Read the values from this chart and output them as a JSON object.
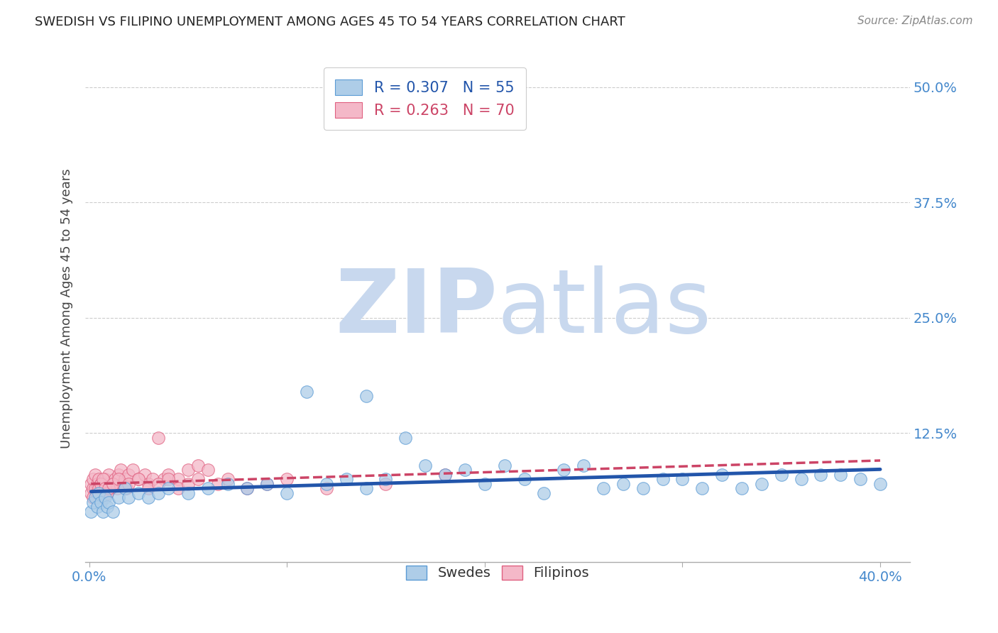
{
  "title": "SWEDISH VS FILIPINO UNEMPLOYMENT AMONG AGES 45 TO 54 YEARS CORRELATION CHART",
  "source": "Source: ZipAtlas.com",
  "ylabel": "Unemployment Among Ages 45 to 54 years",
  "xlim": [
    -0.002,
    0.415
  ],
  "ylim": [
    -0.015,
    0.535
  ],
  "xticks": [
    0.0,
    0.1,
    0.2,
    0.3,
    0.4
  ],
  "yticks": [
    0.125,
    0.25,
    0.375,
    0.5
  ],
  "xtick_labels": [
    "0.0%",
    "",
    "",
    "",
    "40.0%"
  ],
  "ytick_labels": [
    "12.5%",
    "25.0%",
    "37.5%",
    "50.0%"
  ],
  "swedes_R": 0.307,
  "swedes_N": 55,
  "filipinos_R": 0.263,
  "filipinos_N": 70,
  "blue_color": "#aecde8",
  "blue_edge_color": "#5b9bd5",
  "blue_line_color": "#2255aa",
  "pink_color": "#f4b8c8",
  "pink_edge_color": "#e06080",
  "pink_line_color": "#cc4466",
  "watermark_zip_color": "#c8d8ee",
  "watermark_atlas_color": "#c8d8ee",
  "background_color": "#ffffff",
  "grid_color": "#cccccc",
  "swedes_x": [
    0.001,
    0.002,
    0.003,
    0.004,
    0.005,
    0.006,
    0.007,
    0.008,
    0.009,
    0.01,
    0.012,
    0.015,
    0.018,
    0.02,
    0.025,
    0.03,
    0.035,
    0.04,
    0.05,
    0.06,
    0.07,
    0.08,
    0.09,
    0.1,
    0.12,
    0.13,
    0.14,
    0.15,
    0.17,
    0.18,
    0.19,
    0.2,
    0.22,
    0.24,
    0.25,
    0.26,
    0.27,
    0.28,
    0.29,
    0.3,
    0.31,
    0.32,
    0.33,
    0.34,
    0.35,
    0.36,
    0.37,
    0.38,
    0.39,
    0.4,
    0.16,
    0.21,
    0.23,
    0.11,
    0.14
  ],
  "swedes_y": [
    0.04,
    0.05,
    0.055,
    0.045,
    0.06,
    0.05,
    0.04,
    0.055,
    0.045,
    0.05,
    0.04,
    0.055,
    0.065,
    0.055,
    0.06,
    0.055,
    0.06,
    0.065,
    0.06,
    0.065,
    0.07,
    0.065,
    0.07,
    0.06,
    0.07,
    0.075,
    0.165,
    0.075,
    0.09,
    0.08,
    0.085,
    0.07,
    0.075,
    0.085,
    0.09,
    0.065,
    0.07,
    0.065,
    0.075,
    0.075,
    0.065,
    0.08,
    0.065,
    0.07,
    0.08,
    0.075,
    0.08,
    0.08,
    0.075,
    0.07,
    0.12,
    0.09,
    0.06,
    0.17,
    0.065
  ],
  "filipinos_x": [
    0.001,
    0.001,
    0.002,
    0.002,
    0.003,
    0.003,
    0.004,
    0.004,
    0.005,
    0.005,
    0.006,
    0.006,
    0.007,
    0.007,
    0.008,
    0.008,
    0.009,
    0.009,
    0.01,
    0.01,
    0.011,
    0.012,
    0.013,
    0.014,
    0.015,
    0.016,
    0.017,
    0.018,
    0.019,
    0.02,
    0.022,
    0.025,
    0.028,
    0.03,
    0.032,
    0.035,
    0.038,
    0.04,
    0.045,
    0.05,
    0.055,
    0.06,
    0.065,
    0.07,
    0.08,
    0.09,
    0.1,
    0.12,
    0.15,
    0.18,
    0.002,
    0.003,
    0.004,
    0.005,
    0.006,
    0.007,
    0.008,
    0.009,
    0.01,
    0.012,
    0.015,
    0.018,
    0.02,
    0.025,
    0.03,
    0.035,
    0.04,
    0.045,
    0.05,
    0.055
  ],
  "filipinos_y": [
    0.06,
    0.07,
    0.065,
    0.075,
    0.055,
    0.08,
    0.065,
    0.07,
    0.06,
    0.075,
    0.065,
    0.07,
    0.055,
    0.065,
    0.07,
    0.075,
    0.06,
    0.065,
    0.07,
    0.08,
    0.065,
    0.07,
    0.075,
    0.065,
    0.08,
    0.085,
    0.07,
    0.075,
    0.065,
    0.08,
    0.085,
    0.075,
    0.08,
    0.07,
    0.075,
    0.12,
    0.075,
    0.08,
    0.075,
    0.085,
    0.09,
    0.085,
    0.07,
    0.075,
    0.065,
    0.07,
    0.075,
    0.065,
    0.07,
    0.08,
    0.055,
    0.065,
    0.06,
    0.065,
    0.07,
    0.075,
    0.065,
    0.06,
    0.065,
    0.07,
    0.075,
    0.065,
    0.07,
    0.075,
    0.065,
    0.07,
    0.075,
    0.065,
    0.07,
    0.075
  ]
}
